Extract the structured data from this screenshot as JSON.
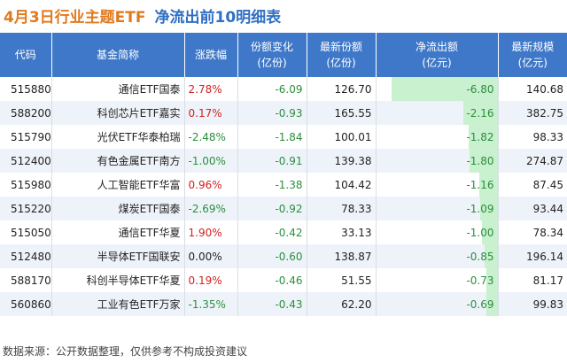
{
  "title": {
    "part1": "4月3日行业主题ETF",
    "part2": "净流出前10明细表"
  },
  "columns": [
    {
      "line1": "代码",
      "line2": ""
    },
    {
      "line1": "基金简称",
      "line2": ""
    },
    {
      "line1": "涨跌幅",
      "line2": ""
    },
    {
      "line1": "份额变化",
      "line2": "(亿份)"
    },
    {
      "line1": "最新份额",
      "line2": "(亿份)"
    },
    {
      "line1": "净流出额",
      "line2": "(亿元)"
    },
    {
      "line1": "最新规模",
      "line2": "(亿元)"
    }
  ],
  "rows": [
    {
      "code": "515880",
      "name": "通信ETF国泰",
      "change": "2.78%",
      "share_change": "-6.09",
      "shares": "126.70",
      "outflow": "-6.80",
      "size": "140.68"
    },
    {
      "code": "588200",
      "name": "科创芯片ETF嘉实",
      "change": "0.17%",
      "share_change": "-0.93",
      "shares": "165.55",
      "outflow": "-2.16",
      "size": "382.75"
    },
    {
      "code": "515790",
      "name": "光伏ETF华泰柏瑞",
      "change": "-2.48%",
      "share_change": "-1.84",
      "shares": "100.01",
      "outflow": "-1.82",
      "size": "98.33"
    },
    {
      "code": "512400",
      "name": "有色金属ETF南方",
      "change": "-1.00%",
      "share_change": "-0.91",
      "shares": "139.38",
      "outflow": "-1.80",
      "size": "274.87"
    },
    {
      "code": "515980",
      "name": "人工智能ETF华富",
      "change": "0.96%",
      "share_change": "-1.38",
      "shares": "104.42",
      "outflow": "-1.16",
      "size": "87.45"
    },
    {
      "code": "515220",
      "name": "煤炭ETF国泰",
      "change": "-2.69%",
      "share_change": "-0.92",
      "shares": "78.33",
      "outflow": "-1.09",
      "size": "93.44"
    },
    {
      "code": "515050",
      "name": "通信ETF华夏",
      "change": "1.90%",
      "share_change": "-0.42",
      "shares": "33.13",
      "outflow": "-1.00",
      "size": "78.34"
    },
    {
      "code": "512480",
      "name": "半导体ETF国联安",
      "change": "0.00%",
      "share_change": "-0.60",
      "shares": "138.87",
      "outflow": "-0.85",
      "size": "196.14"
    },
    {
      "code": "588170",
      "name": "科创半导体ETF华夏",
      "change": "0.19%",
      "share_change": "-0.46",
      "shares": "51.55",
      "outflow": "-0.73",
      "size": "81.17"
    },
    {
      "code": "560860",
      "name": "工业有色ETF万家",
      "change": "-1.35%",
      "share_change": "-0.43",
      "shares": "62.20",
      "outflow": "-0.69",
      "size": "99.83"
    }
  ],
  "footer": "数据来源：公开数据整理，仅供参考不构成投资建议",
  "colors": {
    "header_bg": "#3f78c8",
    "title_orange": "#e07a1e",
    "title_blue": "#2f6fc4",
    "up": "#d42020",
    "down": "#2a8f3c",
    "bar": "#c9f0cf"
  }
}
